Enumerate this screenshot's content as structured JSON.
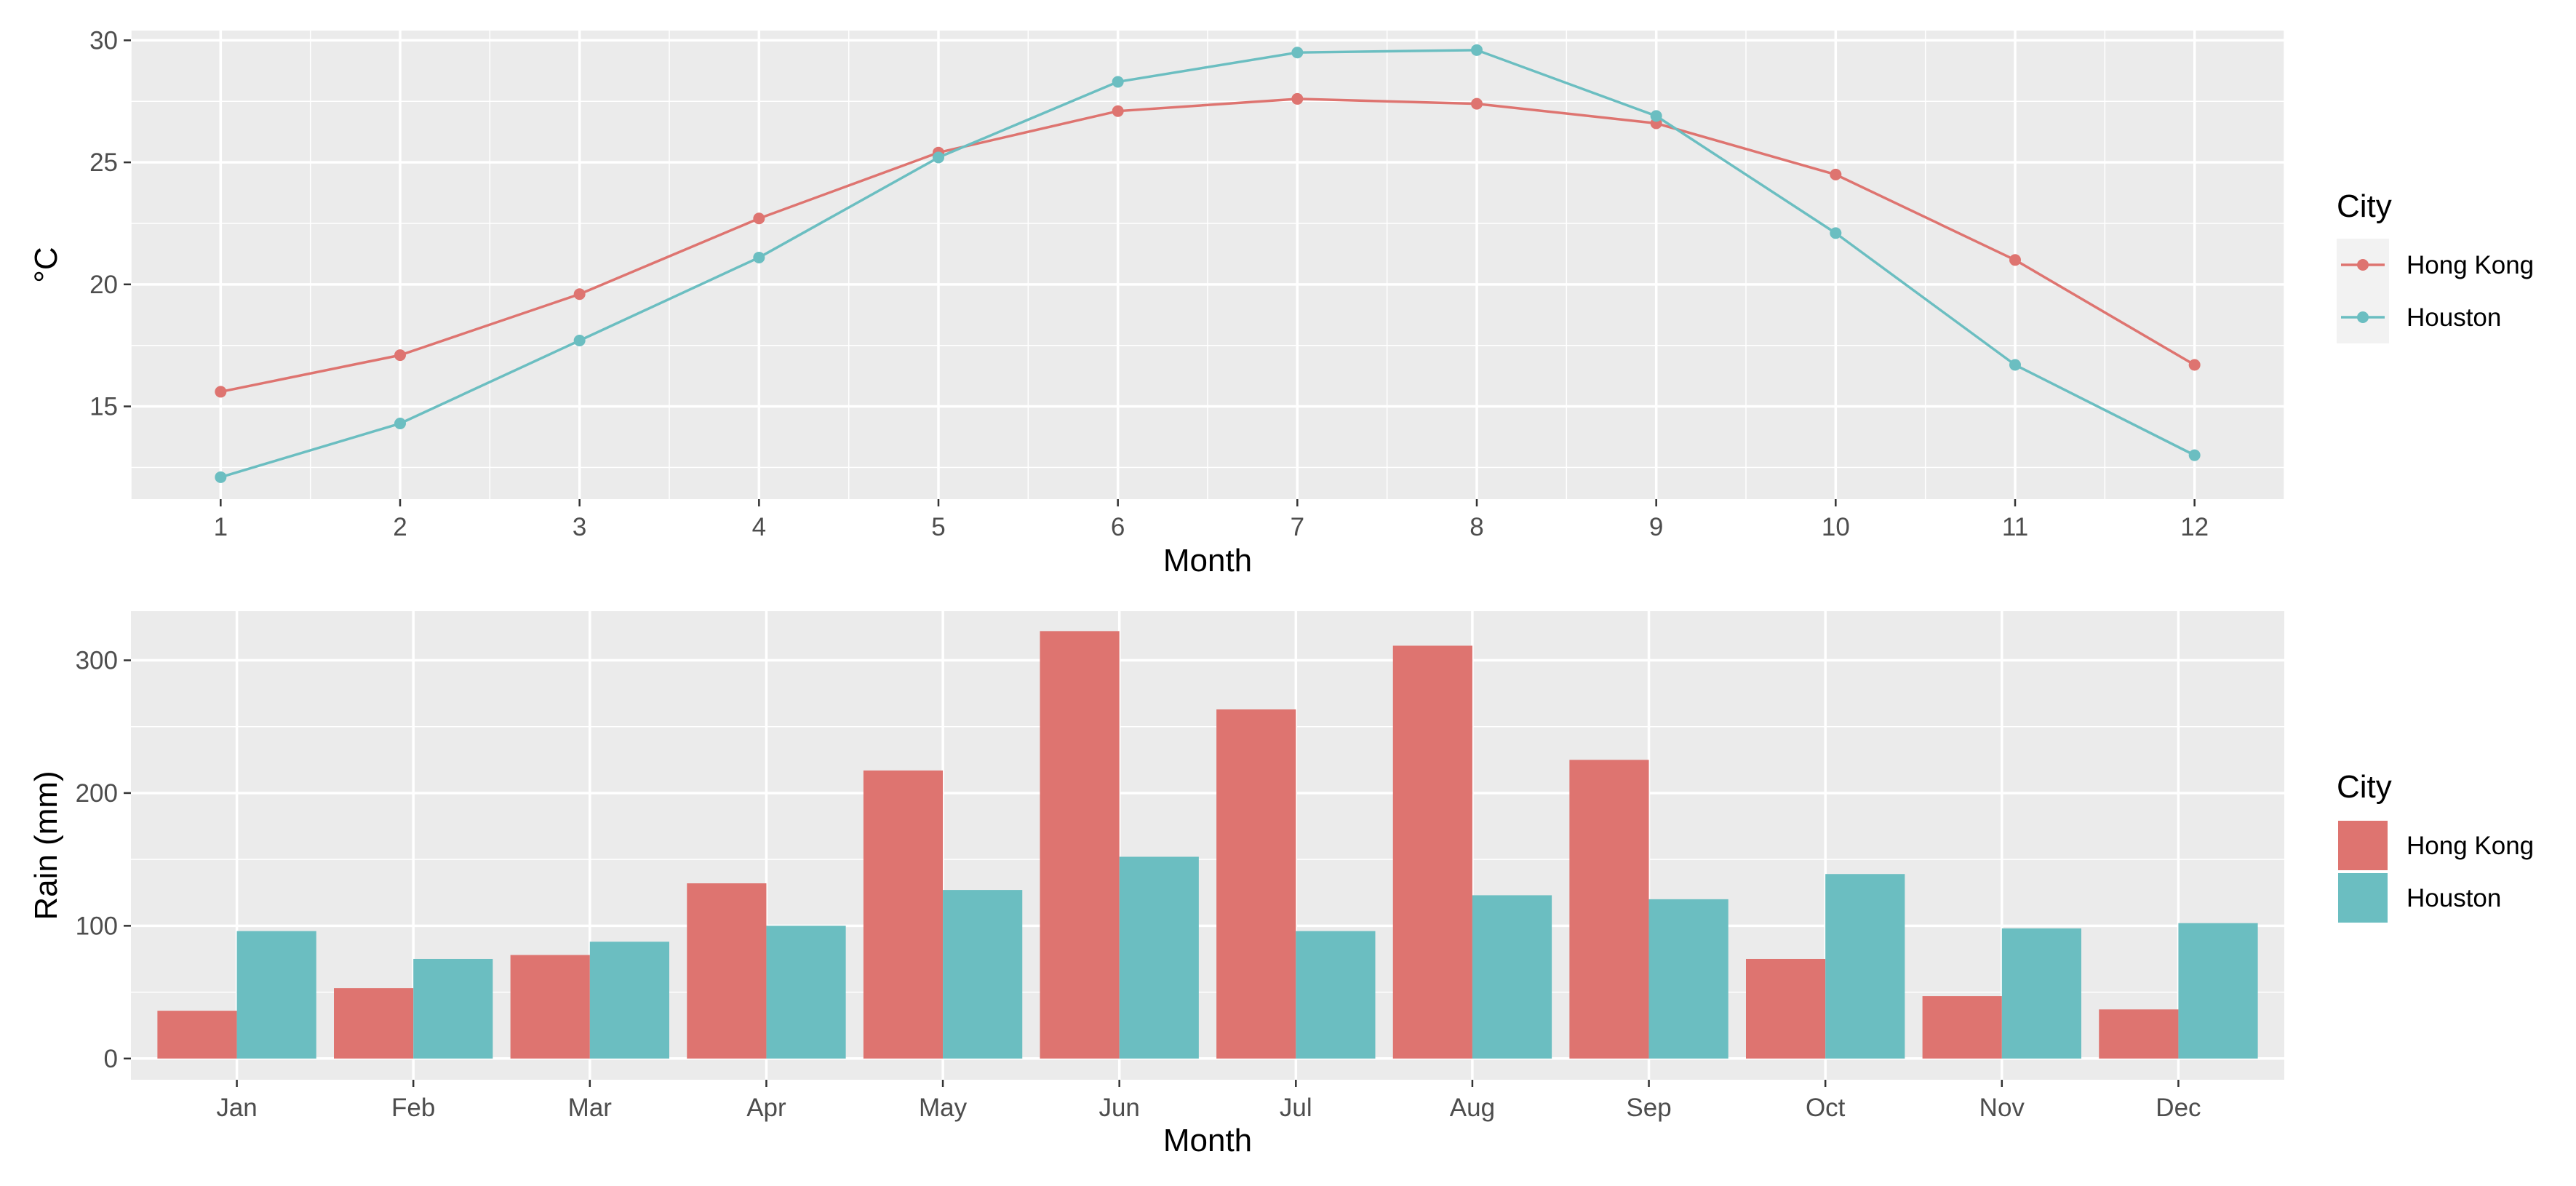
{
  "colors": {
    "hong_kong": "#DE7470",
    "houston": "#6BBEC1",
    "panel_bg": "#EBEBEB",
    "grid": "#FFFFFF",
    "tick_text": "#4D4D4D",
    "legend_key_bg": "#F2F2F2"
  },
  "chart_data": [
    {
      "type": "line",
      "xlabel": "Month",
      "ylabel": "°C",
      "x": [
        1,
        2,
        3,
        4,
        5,
        6,
        7,
        8,
        9,
        10,
        11,
        12
      ],
      "x_ticks": [
        1,
        2,
        3,
        4,
        5,
        6,
        7,
        8,
        9,
        10,
        11,
        12
      ],
      "y_ticks": [
        15,
        20,
        25,
        30
      ],
      "xlim": [
        0.5,
        12.5
      ],
      "ylim": [
        11.2,
        30.4
      ],
      "grid": true,
      "legend": {
        "title": "City",
        "position": "right",
        "labels": [
          "Hong Kong",
          "Houston"
        ]
      },
      "series": [
        {
          "name": "Hong Kong",
          "values": [
            15.6,
            17.1,
            19.6,
            22.7,
            25.4,
            27.1,
            27.6,
            27.4,
            26.6,
            24.5,
            21.0,
            16.7
          ]
        },
        {
          "name": "Houston",
          "values": [
            12.1,
            14.3,
            17.7,
            21.1,
            25.2,
            28.3,
            29.5,
            29.6,
            26.9,
            22.1,
            16.7,
            13.0
          ]
        }
      ]
    },
    {
      "type": "bar",
      "xlabel": "Month",
      "ylabel": "Rain (mm)",
      "categories": [
        "Jan",
        "Feb",
        "Mar",
        "Apr",
        "May",
        "Jun",
        "Jul",
        "Aug",
        "Sep",
        "Oct",
        "Nov",
        "Dec"
      ],
      "y_ticks": [
        0,
        100,
        200,
        300
      ],
      "ylim": [
        -16,
        337
      ],
      "grid": true,
      "legend": {
        "title": "City",
        "position": "right",
        "labels": [
          "Hong Kong",
          "Houston"
        ]
      },
      "series": [
        {
          "name": "Hong Kong",
          "values": [
            36,
            53,
            78,
            132,
            217,
            322,
            263,
            311,
            225,
            75,
            47,
            37
          ]
        },
        {
          "name": "Houston",
          "values": [
            96,
            75,
            88,
            100,
            127,
            152,
            96,
            123,
            120,
            139,
            98,
            102
          ]
        }
      ]
    }
  ]
}
